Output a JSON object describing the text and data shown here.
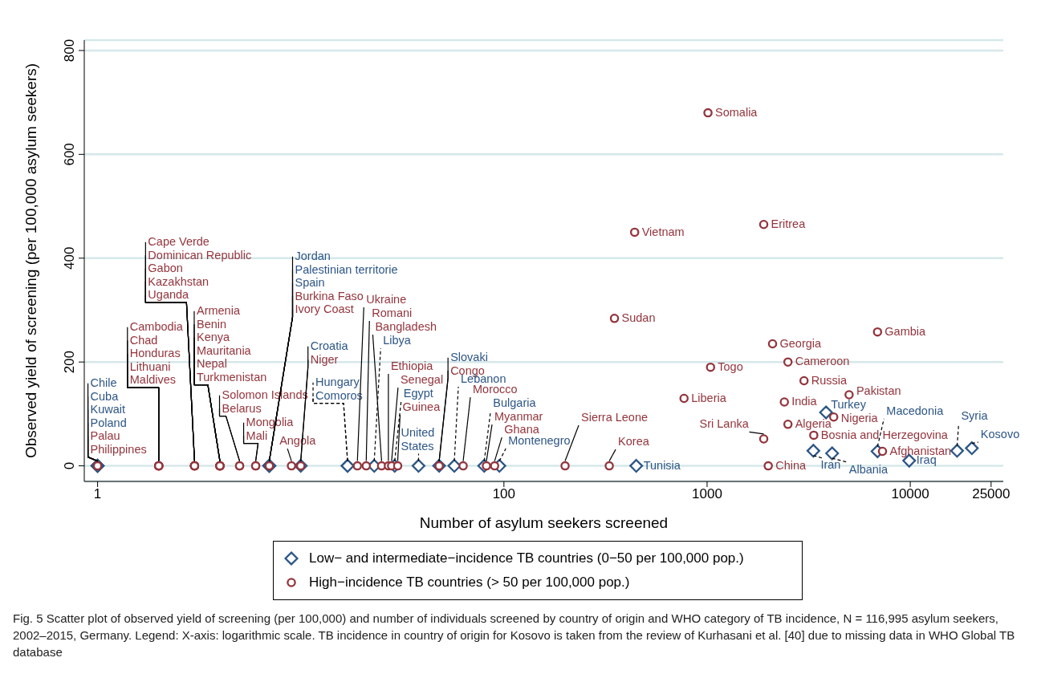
{
  "chart_data": {
    "type": "scatter",
    "xlabel": "Number of asylum seekers screened",
    "ylabel": "Observed yield of screening (per 100,000 asylum seekers)",
    "log": "x",
    "grid": "y",
    "legend": "bottom",
    "xlim": [
      0.86,
      28700
    ],
    "ylim": [
      -30,
      820
    ],
    "xticks": [
      1,
      100,
      1000,
      10000,
      25000
    ],
    "yticks": [
      0,
      200,
      400,
      600,
      800
    ],
    "series": [
      {
        "name": "Low− and intermediate−incidence TB countries (0−50 per 100,000 pop.)",
        "color": "#2d5686",
        "marker": "diamond",
        "x": [
          1,
          1,
          1,
          1,
          7,
          7,
          7,
          10,
          17,
          17,
          23,
          29,
          38,
          48,
          57,
          80,
          95,
          448,
          3850,
          3335,
          4125,
          6900,
          9880,
          17000,
          20100
        ],
        "values": [
          0,
          0,
          0,
          0,
          0,
          0,
          0,
          0,
          0,
          0,
          0,
          0,
          0,
          0,
          0,
          0,
          0,
          0,
          103,
          29,
          24,
          28,
          10,
          29,
          34
        ]
      },
      {
        "name": "High−incidence TB countries (> 50 per 100,000 pop.)",
        "color": "#93353d",
        "marker": "circle",
        "x": [
          1,
          1,
          2,
          2,
          2,
          2,
          2,
          3,
          3,
          3,
          3,
          3,
          4,
          4,
          4,
          4,
          4,
          4,
          5,
          5,
          6,
          6,
          7,
          7,
          9,
          10,
          19,
          21,
          25,
          27,
          28,
          30,
          48,
          63,
          82,
          90,
          200,
          330,
          770,
          350,
          440,
          1040,
          1010,
          1900,
          1900,
          2000,
          2100,
          2400,
          2500,
          2500,
          3000,
          3350,
          4200,
          5000,
          6900,
          7300
        ],
        "values": [
          0,
          0,
          0,
          0,
          0,
          0,
          0,
          0,
          0,
          0,
          0,
          0,
          0,
          0,
          0,
          0,
          0,
          0,
          0,
          0,
          0,
          0,
          0,
          0,
          0,
          0,
          0,
          0,
          0,
          0,
          0,
          0,
          0,
          0,
          0,
          0,
          0,
          0,
          130,
          284,
          450,
          190,
          680,
          465,
          52,
          0,
          235,
          123,
          80,
          200,
          164,
          59,
          94,
          137,
          258,
          28
        ]
      }
    ],
    "annotations": [
      {
        "text": "Chile",
        "x": 1,
        "y": 0
      },
      {
        "text": "Cuba",
        "x": 1,
        "y": 0
      },
      {
        "text": "Kuwait",
        "x": 1,
        "y": 0
      },
      {
        "text": "Poland",
        "x": 1,
        "y": 0
      },
      {
        "text": "Jordan",
        "x": 7,
        "y": 0
      },
      {
        "text": "Palestinian territorie",
        "x": 7,
        "y": 0
      },
      {
        "text": "Spain",
        "x": 7,
        "y": 0
      },
      {
        "text": "Croatia",
        "x": 10,
        "y": 0
      },
      {
        "text": "Hungary",
        "x": 17,
        "y": 0
      },
      {
        "text": "Comoros",
        "x": 17,
        "y": 0
      },
      {
        "text": "Libya",
        "x": 23,
        "y": 0
      },
      {
        "text": "Egypt",
        "x": 29,
        "y": 0
      },
      {
        "text": "United States",
        "x": 38,
        "y": 0
      },
      {
        "text": "Slovaki",
        "x": 48,
        "y": 0
      },
      {
        "text": "Lebanon",
        "x": 57,
        "y": 0
      },
      {
        "text": "Bulgaria",
        "x": 80,
        "y": 0
      },
      {
        "text": "Montenegro",
        "x": 95,
        "y": 0
      },
      {
        "text": "Tunisia",
        "x": 448,
        "y": 0
      },
      {
        "text": "Turkey",
        "x": 3850,
        "y": 103
      },
      {
        "text": "Iran",
        "x": 3335,
        "y": 29
      },
      {
        "text": "Albania",
        "x": 4125,
        "y": 24
      },
      {
        "text": "Macedonia",
        "x": 6900,
        "y": 28
      },
      {
        "text": "Iraq",
        "x": 9880,
        "y": 10
      },
      {
        "text": "Syria",
        "x": 17000,
        "y": 29
      },
      {
        "text": "Kosovo",
        "x": 20100,
        "y": 34
      },
      {
        "text": "Palau",
        "x": 1,
        "y": 0
      },
      {
        "text": "Philippines",
        "x": 1,
        "y": 0
      },
      {
        "text": "Cambodia",
        "x": 2,
        "y": 0
      },
      {
        "text": "Chad",
        "x": 2,
        "y": 0
      },
      {
        "text": "Honduras",
        "x": 2,
        "y": 0
      },
      {
        "text": "Lithuani",
        "x": 2,
        "y": 0
      },
      {
        "text": "Maldives",
        "x": 2,
        "y": 0
      },
      {
        "text": "Cape Verde",
        "x": 3,
        "y": 0
      },
      {
        "text": "Dominican Republic",
        "x": 3,
        "y": 0
      },
      {
        "text": "Gabon",
        "x": 3,
        "y": 0
      },
      {
        "text": "Kazakhstan",
        "x": 3,
        "y": 0
      },
      {
        "text": "Uganda",
        "x": 3,
        "y": 0
      },
      {
        "text": "Armenia",
        "x": 4,
        "y": 0
      },
      {
        "text": "Benin",
        "x": 4,
        "y": 0
      },
      {
        "text": "Kenya",
        "x": 4,
        "y": 0
      },
      {
        "text": "Mauritania",
        "x": 4,
        "y": 0
      },
      {
        "text": "Nepal",
        "x": 4,
        "y": 0
      },
      {
        "text": "Turkmenistan",
        "x": 4,
        "y": 0
      },
      {
        "text": "Solomon Islands",
        "x": 5,
        "y": 0
      },
      {
        "text": "Belarus",
        "x": 5,
        "y": 0
      },
      {
        "text": "Mongolia",
        "x": 6,
        "y": 0
      },
      {
        "text": "Mali",
        "x": 6,
        "y": 0
      },
      {
        "text": "Burkina Faso",
        "x": 7,
        "y": 0
      },
      {
        "text": "Ivory Coast",
        "x": 7,
        "y": 0
      },
      {
        "text": "Angola",
        "x": 9,
        "y": 0
      },
      {
        "text": "Niger",
        "x": 10,
        "y": 0
      },
      {
        "text": "Ukraine",
        "x": 19,
        "y": 0
      },
      {
        "text": "Romani",
        "x": 21,
        "y": 0
      },
      {
        "text": "Bangladesh",
        "x": 25,
        "y": 0
      },
      {
        "text": "Ethiopia",
        "x": 27,
        "y": 0
      },
      {
        "text": "Senegal",
        "x": 28,
        "y": 0
      },
      {
        "text": "Guinea",
        "x": 30,
        "y": 0
      },
      {
        "text": "Congo",
        "x": 48,
        "y": 0
      },
      {
        "text": "Morocco",
        "x": 63,
        "y": 0
      },
      {
        "text": "Myanmar",
        "x": 82,
        "y": 0
      },
      {
        "text": "Ghana",
        "x": 90,
        "y": 0
      },
      {
        "text": "Sierra Leone",
        "x": 200,
        "y": 0
      },
      {
        "text": "Korea",
        "x": 330,
        "y": 0
      },
      {
        "text": "Liberia",
        "x": 770,
        "y": 130
      },
      {
        "text": "Sudan",
        "x": 350,
        "y": 284
      },
      {
        "text": "Vietnam",
        "x": 440,
        "y": 450
      },
      {
        "text": "Togo",
        "x": 1040,
        "y": 190
      },
      {
        "text": "Somalia",
        "x": 1010,
        "y": 680
      },
      {
        "text": "Eritrea",
        "x": 1900,
        "y": 465
      },
      {
        "text": "Sri Lanka",
        "x": 1900,
        "y": 52
      },
      {
        "text": "China",
        "x": 2000,
        "y": 0
      },
      {
        "text": "Georgia",
        "x": 2100,
        "y": 235
      },
      {
        "text": "India",
        "x": 2400,
        "y": 123
      },
      {
        "text": "Algeria",
        "x": 2500,
        "y": 80
      },
      {
        "text": "Cameroon",
        "x": 2500,
        "y": 200
      },
      {
        "text": "Russia",
        "x": 3000,
        "y": 164
      },
      {
        "text": "Bosnia and Herzegovina",
        "x": 3350,
        "y": 59
      },
      {
        "text": "Nigeria",
        "x": 4200,
        "y": 94
      },
      {
        "text": "Pakistan",
        "x": 5000,
        "y": 137
      },
      {
        "text": "Gambia",
        "x": 6900,
        "y": 258
      },
      {
        "text": "Afghanistan",
        "x": 7300,
        "y": 28
      },
      "Fig. 5 Scatter plot of observed yield of screening (per 100,000) and number of individuals screened by country of origin and WHO category of TB incidence, N = 116,995 asylum seekers, 2002–2015, Germany. Legend: X-axis: logarithmic scale. TB incidence in country of origin for Kosovo is taken from the review of Kurhasani et al. [40] due to missing data in WHO Global TB database"
    ]
  }
}
